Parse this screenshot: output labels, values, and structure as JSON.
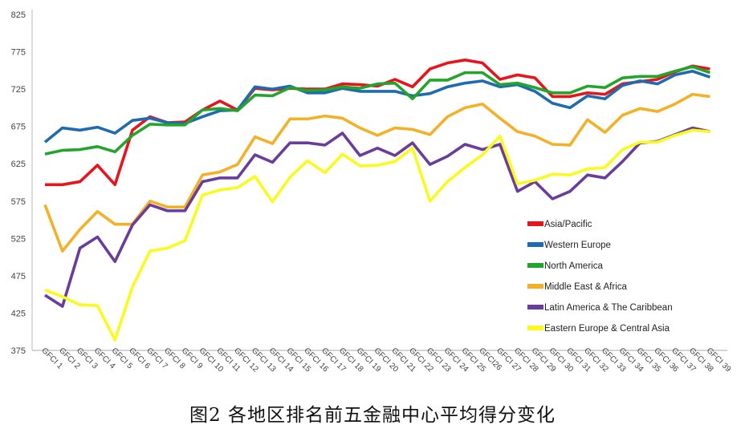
{
  "chart_data": {
    "type": "line",
    "title": "图2 各地区排名前五金融中心平均得分变化",
    "xlabel": "",
    "ylabel": "",
    "ylim": [
      375,
      825
    ],
    "yticks": [
      375,
      425,
      475,
      525,
      575,
      625,
      675,
      725,
      775,
      825
    ],
    "grid": false,
    "legend_position": "bottom-right",
    "categories": [
      "GFCI 1",
      "GFCI 2",
      "GFCI 3",
      "GFCI 4",
      "GFCI 5",
      "GFCI 6",
      "GFCI 7",
      "GFCI 8",
      "GFCI 9",
      "GFCI 10",
      "GFCI 11",
      "GFCI 12",
      "GFCI 13",
      "GFCI 14",
      "GFCI 15",
      "GFCI 16",
      "GFCI 17",
      "GFCI 18",
      "GFCI 19",
      "GFCI 20",
      "GFCI 21",
      "GFCI 22",
      "GFCI 23",
      "GFCI 24",
      "GFCI 25",
      "GFCI26",
      "GFCI 27",
      "GFCI 28",
      "GFCI 29",
      "GFCI 30",
      "GFCI 31",
      "GFCI 32",
      "GFCI 33",
      "GFCI 34",
      "GFCI 35",
      "GFCI 36",
      "GFCI 37",
      "GFCI 38",
      "GFCI 39"
    ],
    "series": [
      {
        "name": "Asia/Pacific",
        "color": "#e8141b",
        "values": [
          597,
          597,
          601,
          623,
          597,
          670,
          688,
          680,
          681,
          697,
          709,
          697,
          726,
          724,
          726,
          725,
          725,
          732,
          731,
          729,
          738,
          728,
          752,
          760,
          764,
          760,
          738,
          744,
          740,
          715,
          715,
          720,
          718,
          732,
          735,
          738,
          748,
          756,
          752
        ]
      },
      {
        "name": "Western Europe",
        "color": "#1f6bb0",
        "values": [
          654,
          673,
          670,
          674,
          666,
          683,
          686,
          680,
          679,
          688,
          696,
          697,
          728,
          725,
          729,
          720,
          720,
          726,
          722,
          722,
          722,
          716,
          719,
          728,
          733,
          736,
          728,
          731,
          722,
          706,
          700,
          716,
          712,
          730,
          736,
          732,
          744,
          749,
          741
        ]
      },
      {
        "name": "North America",
        "color": "#22a52b",
        "values": [
          638,
          643,
          644,
          648,
          641,
          663,
          678,
          677,
          677,
          697,
          699,
          696,
          717,
          716,
          727,
          723,
          724,
          728,
          726,
          732,
          733,
          712,
          737,
          737,
          747,
          747,
          731,
          733,
          727,
          720,
          720,
          729,
          727,
          740,
          742,
          742,
          749,
          755,
          747
        ]
      },
      {
        "name": "Middle East & Africa",
        "color": "#f2b127",
        "values": [
          570,
          508,
          537,
          561,
          544,
          544,
          575,
          567,
          567,
          610,
          614,
          624,
          661,
          652,
          685,
          685,
          689,
          686,
          673,
          663,
          673,
          671,
          664,
          688,
          700,
          705,
          686,
          668,
          662,
          651,
          650,
          684,
          667,
          690,
          699,
          695,
          705,
          718,
          715
        ]
      },
      {
        "name": "Latin America & The Caribbean",
        "color": "#6a3d9a",
        "values": [
          449,
          434,
          512,
          527,
          494,
          543,
          570,
          562,
          562,
          601,
          606,
          606,
          637,
          627,
          653,
          653,
          650,
          666,
          636,
          646,
          636,
          653,
          624,
          635,
          651,
          644,
          651,
          588,
          601,
          578,
          588,
          610,
          606,
          628,
          653,
          655,
          664,
          673,
          668
        ]
      },
      {
        "name": "Eastern Europe & Central Asia",
        "color": "#fafa1e",
        "values": [
          456,
          447,
          436,
          435,
          389,
          460,
          508,
          512,
          522,
          583,
          590,
          593,
          608,
          574,
          607,
          629,
          613,
          638,
          622,
          623,
          628,
          646,
          575,
          601,
          620,
          637,
          662,
          598,
          603,
          611,
          610,
          618,
          620,
          644,
          654,
          654,
          663,
          670,
          668
        ]
      }
    ]
  }
}
